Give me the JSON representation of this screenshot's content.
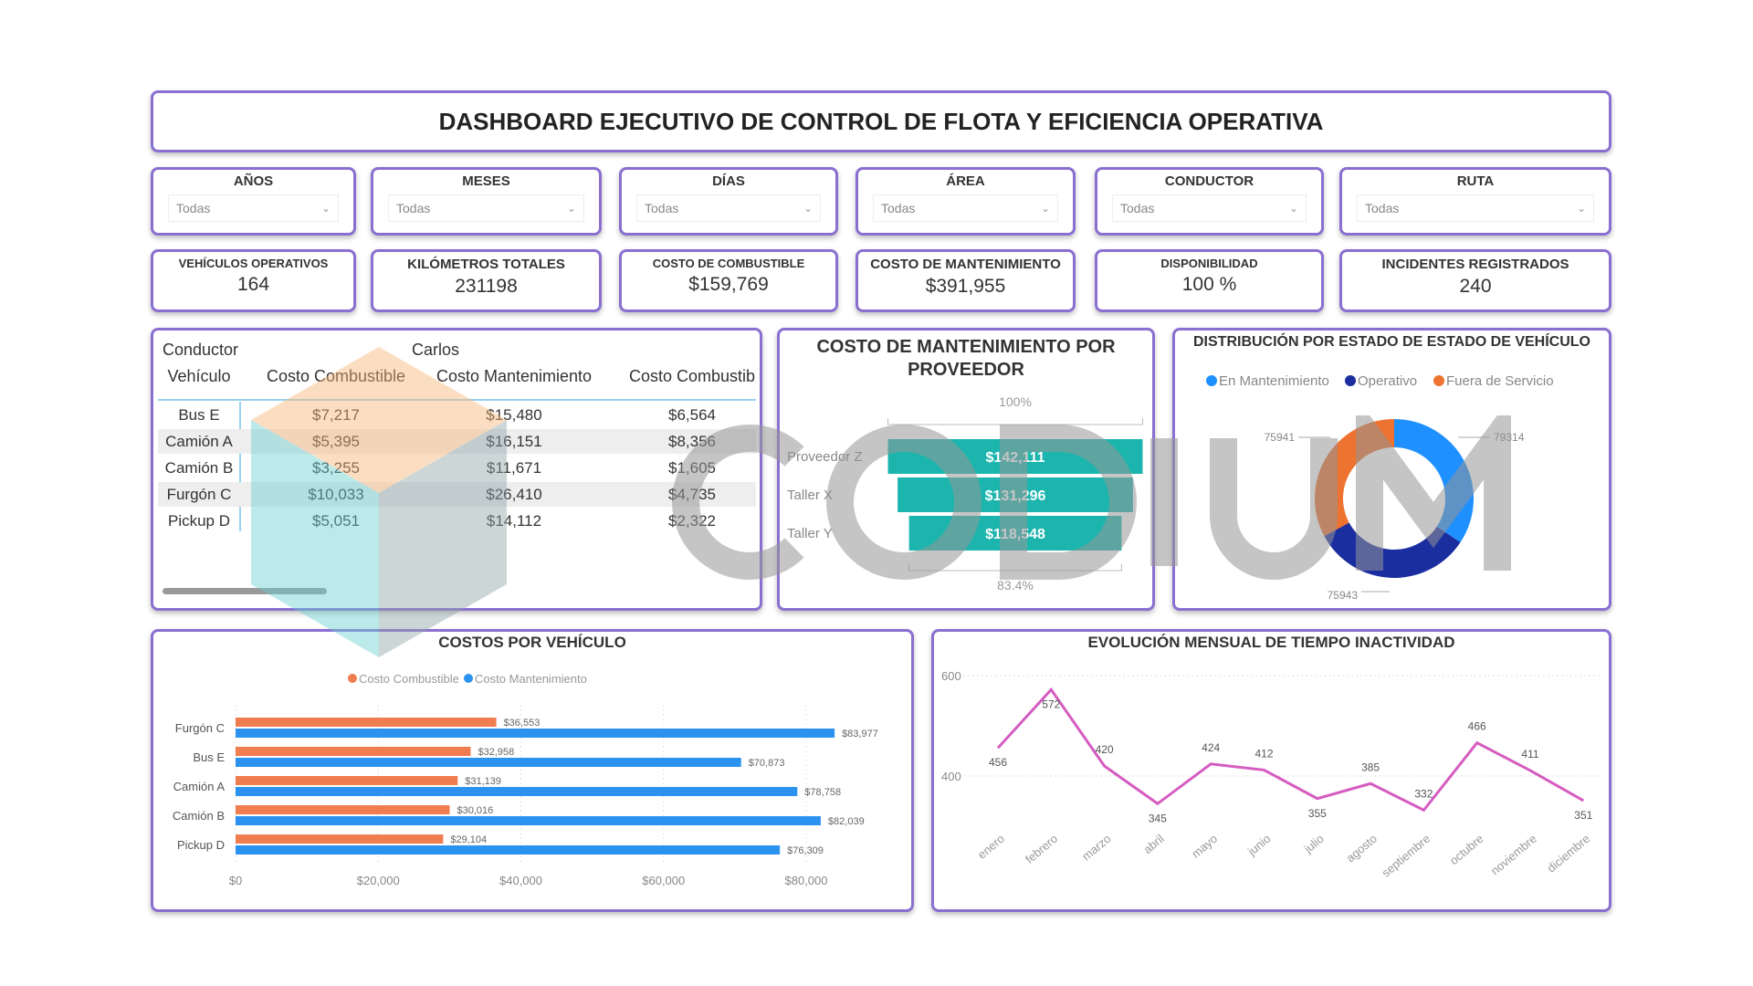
{
  "header": {
    "title": "DASHBOARD EJECUTIVO DE CONTROL DE FLOTA Y EFICIENCIA OPERATIVA"
  },
  "filters": [
    {
      "label": "AÑOS",
      "value": "Todas"
    },
    {
      "label": "MESES",
      "value": "Todas"
    },
    {
      "label": "DÍAS",
      "value": "Todas"
    },
    {
      "label": "ÁREA",
      "value": "Todas"
    },
    {
      "label": "CONDUCTOR",
      "value": "Todas"
    },
    {
      "label": "RUTA",
      "value": "Todas"
    }
  ],
  "kpis": [
    {
      "label": "VEHÍCULOS OPERATIVOS",
      "value": "164"
    },
    {
      "label": "KILÓMETROS TOTALES",
      "value": "231198"
    },
    {
      "label": "COSTO DE COMBUSTIBLE",
      "value": "$159,769"
    },
    {
      "label": "COSTO DE MANTENIMIENTO",
      "value": "$391,955"
    },
    {
      "label": "DISPONIBILIDAD",
      "value": "100 %"
    },
    {
      "label": "INCIDENTES REGISTRADOS",
      "value": "240"
    }
  ],
  "matrix": {
    "row_header_1": "Conductor",
    "group": "Carlos",
    "row_header_2": "Vehículo",
    "columns": [
      "Costo Combustible",
      "Costo Mantenimiento",
      "Costo Combustib"
    ],
    "rows": [
      {
        "vehicle": "Bus E",
        "values": [
          "$7,217",
          "$15,480",
          "$6,564"
        ]
      },
      {
        "vehicle": "Camión A",
        "values": [
          "$5,395",
          "$16,151",
          "$8,356"
        ]
      },
      {
        "vehicle": "Camión B",
        "values": [
          "$3,255",
          "$11,671",
          "$1,605"
        ]
      },
      {
        "vehicle": "Furgón C",
        "values": [
          "$10,033",
          "$26,410",
          "$4,735"
        ]
      },
      {
        "vehicle": "Pickup D",
        "values": [
          "$5,051",
          "$14,112",
          "$2,322"
        ]
      }
    ]
  },
  "watermark": {
    "text": "CODIUM"
  },
  "colors": {
    "border": "#8b6fd0",
    "teal": "#1cb5ad",
    "fuel": "#ef7d4f",
    "maint": "#2b93ef",
    "navy": "#1a2ea0",
    "orange": "#ee7230",
    "lightblue": "#1e90ff",
    "line": "#d55cc0"
  },
  "chart_data": [
    {
      "type": "funnel",
      "title": "COSTO DE MANTENIMIENTO POR PROVEEDOR",
      "categories": [
        "Proveedor Z",
        "Taller X",
        "Taller Y"
      ],
      "values": [
        142111,
        131296,
        118548
      ],
      "data_labels": [
        "$142,111",
        "$131,296",
        "$118,548"
      ],
      "top_label": "100%",
      "bottom_label": "83.4%"
    },
    {
      "type": "pie",
      "title": "DISTRIBUCIÓN POR ESTADO DE ESTADO DE VEHÍCULO",
      "donut": true,
      "legend": "top",
      "series": [
        {
          "name": "En Mantenimiento",
          "value": 79314,
          "label": "79314",
          "color": "#1e90ff"
        },
        {
          "name": "Operativo",
          "value": 75943,
          "label": "75943",
          "color": "#1a2ea0"
        },
        {
          "name": "Fuera de Servicio",
          "value": 75941,
          "label": "75941",
          "color": "#ee7230"
        }
      ]
    },
    {
      "type": "bar",
      "orientation": "horizontal",
      "title": "COSTOS POR VEHÍCULO",
      "legend": "top",
      "categories": [
        "Furgón C",
        "Bus E",
        "Camión A",
        "Camión B",
        "Pickup D"
      ],
      "series": [
        {
          "name": "Costo Combustible",
          "values": [
            36553,
            32958,
            31139,
            30016,
            29104
          ],
          "labels": [
            "$36,553",
            "$32,958",
            "$31,139",
            "$30,016",
            "$29,104"
          ]
        },
        {
          "name": "Costo Mantenimiento",
          "values": [
            83977,
            70873,
            78758,
            82039,
            76309
          ],
          "labels": [
            "$83,977",
            "$70,873",
            "$78,758",
            "$82,039",
            "$76,309"
          ]
        }
      ],
      "xticks": [
        "$0",
        "$20,000",
        "$40,000",
        "$60,000",
        "$80,000"
      ],
      "xlim": [
        0,
        88000
      ],
      "grid": true
    },
    {
      "type": "line",
      "title": "EVOLUCIÓN MENSUAL DE TIEMPO INACTIVIDAD",
      "categories": [
        "enero",
        "febrero",
        "marzo",
        "abril",
        "mayo",
        "junio",
        "julio",
        "agosto",
        "septiembre",
        "octubre",
        "noviembre",
        "diciembre"
      ],
      "values": [
        456,
        572,
        420,
        345,
        424,
        412,
        355,
        385,
        332,
        466,
        411,
        351
      ],
      "yticks": [
        "400",
        "600"
      ],
      "ylim": [
        300,
        620
      ],
      "grid": true
    }
  ]
}
